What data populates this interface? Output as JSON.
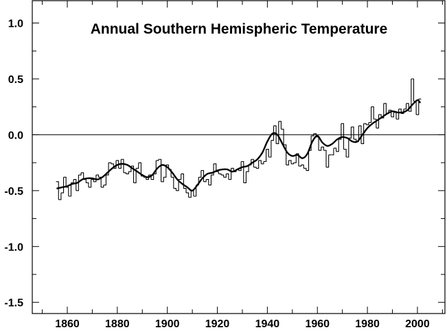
{
  "chart_data": {
    "type": "line",
    "title": "Annual Southern Hemispheric Temperature",
    "xlabel": "",
    "ylabel": "",
    "xlim": [
      1846,
      2011
    ],
    "ylim": [
      -1.6,
      1.2
    ],
    "x_ticks": [
      1860,
      1880,
      1900,
      1920,
      1940,
      1960,
      1980,
      2000
    ],
    "x_tick_labels": [
      "1860",
      "1880",
      "1900",
      "1920",
      "1940",
      "1960",
      "1980",
      "2000"
    ],
    "x_minor_ticks": [
      1850,
      1870,
      1890,
      1910,
      1930,
      1950,
      1970,
      1990,
      2010
    ],
    "y_ticks": [
      1.0,
      0.5,
      0.0,
      -0.5,
      -1.0,
      -1.5
    ],
    "y_tick_labels": [
      "1.0",
      "0.5",
      "0.0",
      "-0.5",
      "-1.0",
      "-1.5"
    ],
    "y_minor_ticks": [
      1.25,
      0.75,
      0.25,
      -0.25,
      -0.75,
      -1.25
    ],
    "zero_line": 0.0,
    "grid": false,
    "legend": "none",
    "colors": {
      "series": "#000000",
      "background": "#ffffff"
    },
    "series": [
      {
        "style": "step",
        "x": [
          1856,
          1857,
          1858,
          1859,
          1860,
          1861,
          1862,
          1863,
          1864,
          1865,
          1866,
          1867,
          1868,
          1869,
          1870,
          1871,
          1872,
          1873,
          1874,
          1875,
          1876,
          1877,
          1878,
          1879,
          1880,
          1881,
          1882,
          1883,
          1884,
          1885,
          1886,
          1887,
          1888,
          1889,
          1890,
          1891,
          1892,
          1893,
          1894,
          1895,
          1896,
          1897,
          1898,
          1899,
          1900,
          1901,
          1902,
          1903,
          1904,
          1905,
          1906,
          1907,
          1908,
          1909,
          1910,
          1911,
          1912,
          1913,
          1914,
          1915,
          1916,
          1917,
          1918,
          1919,
          1920,
          1921,
          1922,
          1923,
          1924,
          1925,
          1926,
          1927,
          1928,
          1929,
          1930,
          1931,
          1932,
          1933,
          1934,
          1935,
          1936,
          1937,
          1938,
          1939,
          1940,
          1941,
          1942,
          1943,
          1944,
          1945,
          1946,
          1947,
          1948,
          1949,
          1950,
          1951,
          1952,
          1953,
          1954,
          1955,
          1956,
          1957,
          1958,
          1959,
          1960,
          1961,
          1962,
          1963,
          1964,
          1965,
          1966,
          1967,
          1968,
          1969,
          1970,
          1971,
          1972,
          1973,
          1974,
          1975,
          1976,
          1977,
          1978,
          1979,
          1980,
          1981,
          1982,
          1983,
          1984,
          1985,
          1986,
          1987,
          1988,
          1989,
          1990,
          1991,
          1992,
          1993,
          1994,
          1995,
          1996,
          1997,
          1998,
          1999,
          2000,
          2001
        ],
        "values": [
          -0.42,
          -0.58,
          -0.52,
          -0.38,
          -0.47,
          -0.55,
          -0.43,
          -0.4,
          -0.5,
          -0.36,
          -0.34,
          -0.4,
          -0.43,
          -0.47,
          -0.4,
          -0.42,
          -0.36,
          -0.38,
          -0.47,
          -0.45,
          -0.36,
          -0.25,
          -0.26,
          -0.3,
          -0.23,
          -0.3,
          -0.22,
          -0.34,
          -0.35,
          -0.33,
          -0.28,
          -0.43,
          -0.3,
          -0.25,
          -0.37,
          -0.38,
          -0.4,
          -0.36,
          -0.4,
          -0.35,
          -0.23,
          -0.22,
          -0.42,
          -0.38,
          -0.27,
          -0.31,
          -0.38,
          -0.48,
          -0.5,
          -0.4,
          -0.35,
          -0.48,
          -0.52,
          -0.56,
          -0.5,
          -0.55,
          -0.45,
          -0.38,
          -0.32,
          -0.42,
          -0.4,
          -0.45,
          -0.36,
          -0.26,
          -0.33,
          -0.35,
          -0.36,
          -0.38,
          -0.35,
          -0.4,
          -0.3,
          -0.33,
          -0.31,
          -0.32,
          -0.24,
          -0.43,
          -0.33,
          -0.27,
          -0.22,
          -0.29,
          -0.3,
          -0.23,
          -0.26,
          -0.24,
          -0.13,
          -0.2,
          -0.05,
          0.08,
          -0.08,
          0.12,
          0.05,
          -0.09,
          -0.27,
          -0.23,
          -0.26,
          -0.25,
          -0.17,
          -0.28,
          -0.27,
          -0.3,
          -0.32,
          -0.14,
          -0.01,
          0.01,
          -0.02,
          -0.14,
          -0.11,
          -0.14,
          -0.29,
          -0.18,
          -0.18,
          -0.12,
          -0.15,
          -0.04,
          0.1,
          -0.13,
          -0.2,
          -0.03,
          0.07,
          -0.04,
          -0.06,
          0.08,
          -0.08,
          0.1,
          0.09,
          0.11,
          0.25,
          0.14,
          0.06,
          0.18,
          0.15,
          0.28,
          0.19,
          0.22,
          0.16,
          0.2,
          0.14,
          0.23,
          0.19,
          0.23,
          0.28,
          0.21,
          0.5,
          0.3,
          0.18,
          0.32
        ]
      },
      {
        "style": "smooth",
        "x": [
          1856,
          1858,
          1860,
          1862,
          1864,
          1866,
          1868,
          1870,
          1872,
          1874,
          1876,
          1878,
          1880,
          1882,
          1884,
          1886,
          1888,
          1890,
          1892,
          1894,
          1896,
          1898,
          1900,
          1902,
          1904,
          1906,
          1908,
          1910,
          1912,
          1914,
          1916,
          1918,
          1920,
          1922,
          1924,
          1926,
          1928,
          1930,
          1932,
          1934,
          1936,
          1938,
          1940,
          1942,
          1944,
          1946,
          1948,
          1950,
          1952,
          1954,
          1956,
          1958,
          1960,
          1962,
          1964,
          1966,
          1968,
          1970,
          1972,
          1974,
          1976,
          1978,
          1980,
          1982,
          1984,
          1986,
          1988,
          1990,
          1992,
          1994,
          1996,
          1998,
          2000,
          2001
        ],
        "values": [
          -0.48,
          -0.47,
          -0.46,
          -0.44,
          -0.43,
          -0.4,
          -0.39,
          -0.39,
          -0.4,
          -0.38,
          -0.34,
          -0.3,
          -0.27,
          -0.26,
          -0.27,
          -0.3,
          -0.33,
          -0.36,
          -0.38,
          -0.36,
          -0.3,
          -0.27,
          -0.29,
          -0.34,
          -0.4,
          -0.44,
          -0.47,
          -0.5,
          -0.45,
          -0.39,
          -0.35,
          -0.34,
          -0.32,
          -0.31,
          -0.31,
          -0.33,
          -0.31,
          -0.29,
          -0.28,
          -0.25,
          -0.22,
          -0.16,
          -0.06,
          0.01,
          0.0,
          -0.08,
          -0.16,
          -0.19,
          -0.18,
          -0.21,
          -0.17,
          -0.06,
          -0.01,
          -0.07,
          -0.1,
          -0.08,
          -0.04,
          -0.02,
          -0.03,
          -0.06,
          -0.06,
          0.0,
          0.06,
          0.1,
          0.13,
          0.16,
          0.19,
          0.21,
          0.2,
          0.2,
          0.22,
          0.27,
          0.31,
          0.29
        ]
      }
    ]
  }
}
